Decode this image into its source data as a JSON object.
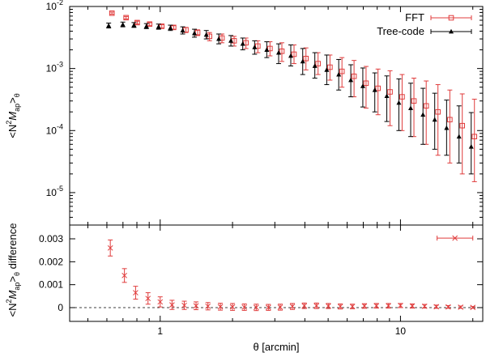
{
  "chart_data": [
    {
      "type": "scatter",
      "panel": "top",
      "ylabel": "<N²M_ap>_θ",
      "xscale": "log",
      "yscale": "log",
      "xlim": [
        0.42,
        22
      ],
      "ylim": [
        3e-06,
        0.01
      ],
      "yticks": [
        {
          "v": 1e-05,
          "base": "10",
          "exp": "-5"
        },
        {
          "v": 0.0001,
          "base": "10",
          "exp": "-4"
        },
        {
          "v": 0.001,
          "base": "10",
          "exp": "-3"
        },
        {
          "v": 0.01,
          "base": "10",
          "exp": "-2"
        }
      ],
      "legend_position": "top-right",
      "series": [
        {
          "name": "FFT",
          "color": "#e03c3c",
          "marker": "open-square",
          "x": [
            0.62,
            0.71,
            0.79,
            0.89,
            1.0,
            1.12,
            1.26,
            1.41,
            1.58,
            1.78,
            2.0,
            2.24,
            2.51,
            2.82,
            3.16,
            3.55,
            3.98,
            4.47,
            5.01,
            5.62,
            6.31,
            7.08,
            7.94,
            8.91,
            10.0,
            11.2,
            12.6,
            14.1,
            15.8,
            17.8,
            20.0
          ],
          "y": [
            0.0078,
            0.0066,
            0.0055,
            0.0052,
            0.0048,
            0.0046,
            0.0042,
            0.0038,
            0.0033,
            0.0031,
            0.0028,
            0.0026,
            0.0023,
            0.0021,
            0.0019,
            0.0017,
            0.00145,
            0.0012,
            0.00105,
            0.0009,
            0.00075,
            0.00058,
            0.00048,
            0.00042,
            0.00035,
            0.0003,
            0.00025,
            0.0002,
            0.00015,
            0.00012,
            8e-05
          ],
          "yerr_low": [
            0.0003,
            0.0003,
            0.0003,
            0.0003,
            0.0003,
            0.0003,
            0.0004,
            0.0004,
            0.0005,
            0.0005,
            0.0005,
            0.0005,
            0.0005,
            0.0005,
            0.0006,
            0.0005,
            0.0005,
            0.0004,
            0.0004,
            0.0004,
            0.0004,
            0.00035,
            0.0003,
            0.0003,
            0.00025,
            0.00022,
            0.00019,
            0.00016,
            0.00012,
            0.0001,
            6.5e-05
          ],
          "yerr_high": [
            0.0003,
            0.0003,
            0.0003,
            0.0003,
            0.0003,
            0.0003,
            0.0004,
            0.0004,
            0.0005,
            0.0005,
            0.0005,
            0.0005,
            0.0005,
            0.0006,
            0.0007,
            0.0007,
            0.0007,
            0.0006,
            0.0006,
            0.0006,
            0.0006,
            0.0005,
            0.0005,
            0.0005,
            0.00045,
            0.0004,
            0.00038,
            0.00035,
            0.0003,
            0.00027,
            0.00024
          ]
        },
        {
          "name": "Tree-code",
          "color": "#000000",
          "marker": "filled-triangle",
          "x": [
            0.62,
            0.71,
            0.79,
            0.89,
            1.0,
            1.12,
            1.26,
            1.41,
            1.58,
            1.78,
            2.0,
            2.24,
            2.51,
            2.82,
            3.16,
            3.55,
            3.98,
            4.47,
            5.01,
            5.62,
            6.31,
            7.08,
            7.94,
            8.91,
            10.0,
            11.2,
            12.6,
            14.1,
            15.8,
            17.8,
            20.0
          ],
          "y": [
            0.0049,
            0.0051,
            0.005,
            0.0048,
            0.0047,
            0.0045,
            0.0041,
            0.0037,
            0.0035,
            0.003,
            0.0028,
            0.0025,
            0.0022,
            0.002,
            0.0018,
            0.0016,
            0.0013,
            0.0011,
            0.00095,
            0.0008,
            0.00065,
            0.00052,
            0.00045,
            0.00036,
            0.00028,
            0.00023,
            0.00018,
            0.00015,
            0.00011,
            8e-05,
            5.5e-05
          ],
          "yerr_low": [
            0.0004,
            0.0004,
            0.0004,
            0.0004,
            0.0004,
            0.0004,
            0.0005,
            0.0005,
            0.0005,
            0.0005,
            0.0005,
            0.0005,
            0.0005,
            0.0005,
            0.0006,
            0.0005,
            0.0005,
            0.0004,
            0.0004,
            0.00035,
            0.0003,
            0.00028,
            0.00025,
            0.00022,
            0.00018,
            0.00015,
            0.00012,
            0.0001,
            7e-05,
            5e-05,
            3.5e-05
          ],
          "yerr_high": [
            0.0005,
            0.0005,
            0.0005,
            0.0005,
            0.0005,
            0.0005,
            0.0006,
            0.0006,
            0.0006,
            0.0006,
            0.0006,
            0.0006,
            0.0006,
            0.0007,
            0.0007,
            0.0008,
            0.0008,
            0.0007,
            0.0007,
            0.0006,
            0.0005,
            0.0005,
            0.0004,
            0.0004,
            0.0004,
            0.00035,
            0.0003,
            0.00025,
            0.0002,
            0.00017,
            0.00014
          ]
        }
      ]
    },
    {
      "type": "scatter",
      "panel": "bottom",
      "xlabel": "θ [arcmin]",
      "ylabel": "<N²M_ap>_θ difference",
      "xscale": "log",
      "xlim": [
        0.42,
        22
      ],
      "ylim": [
        -0.0006,
        0.0036
      ],
      "yticks": [
        0,
        0.001,
        0.002,
        0.003
      ],
      "ytick_labels": [
        "0",
        "0.001",
        "0.002",
        "0.003"
      ],
      "xticks": [
        1,
        10
      ],
      "xtick_labels": [
        "1",
        "10"
      ],
      "zero_line": "dashed",
      "series": [
        {
          "color": "#e03c3c",
          "marker": "x",
          "x": [
            0.62,
            0.71,
            0.79,
            0.89,
            1.0,
            1.12,
            1.26,
            1.41,
            1.58,
            1.78,
            2.0,
            2.24,
            2.51,
            2.82,
            3.16,
            3.55,
            3.98,
            4.47,
            5.01,
            5.62,
            6.31,
            7.08,
            7.94,
            8.91,
            10.0,
            11.2,
            12.6,
            14.1,
            15.8,
            17.8,
            20.0
          ],
          "y": [
            0.0026,
            0.0014,
            0.00065,
            0.0004,
            0.00025,
            0.00012,
            0.0001,
            8e-05,
            6e-05,
            4e-05,
            3e-05,
            2e-05,
            1e-05,
            1e-05,
            2e-05,
            5e-05,
            8e-05,
            8e-05,
            7e-05,
            5e-05,
            5e-05,
            7e-05,
            8e-05,
            8e-05,
            9e-05,
            7e-05,
            6e-05,
            4e-05,
            3e-05,
            2e-05,
            1e-05
          ],
          "yerr": [
            0.00035,
            0.0003,
            0.00028,
            0.00025,
            0.00022,
            0.0002,
            0.00018,
            0.00017,
            0.00016,
            0.00015,
            0.00015,
            0.00014,
            0.00014,
            0.00013,
            0.00013,
            0.00013,
            0.00012,
            0.00012,
            0.00011,
            0.00011,
            0.0001,
            0.0001,
            0.0001,
            0.0001,
            9e-05,
            9e-05,
            8e-05,
            7e-05,
            6e-05,
            5e-05,
            4e-05
          ]
        }
      ],
      "legend_sample": {
        "y": 0.00303,
        "x_from": 14.2,
        "x_to": 20.0
      }
    }
  ]
}
